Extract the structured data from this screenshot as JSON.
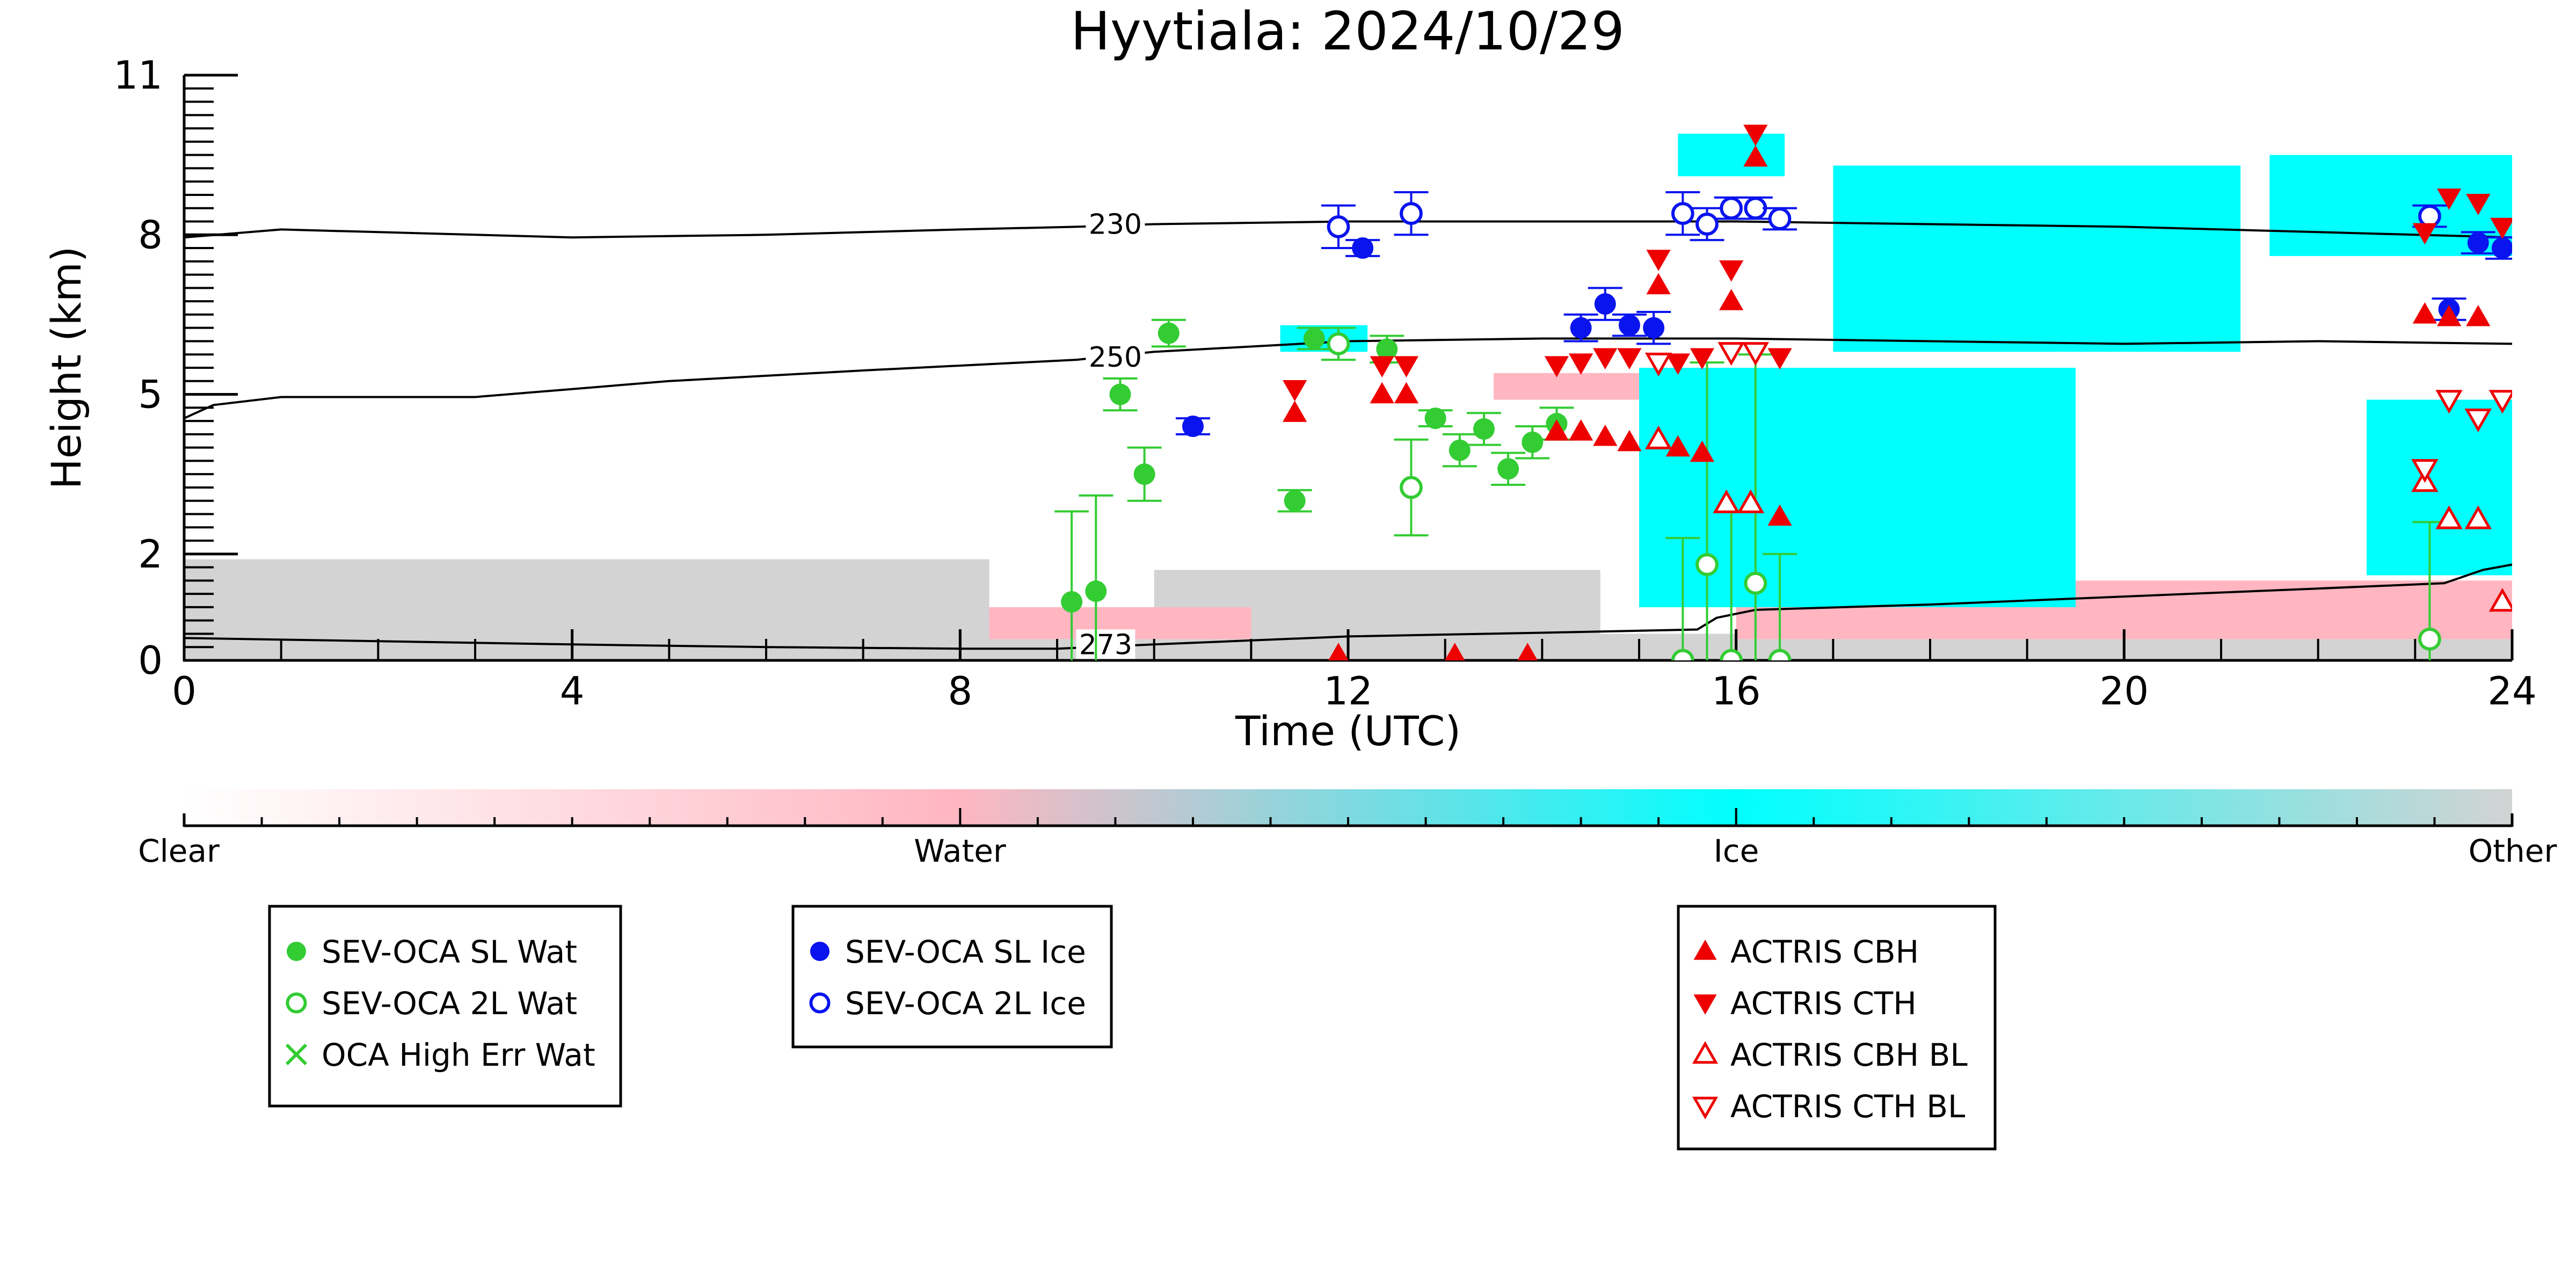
{
  "chart_data": {
    "type": "scatter",
    "title": "Hyytiala: 2024/10/29",
    "xlabel": "Time (UTC)",
    "ylabel": "Height (km)",
    "xlim": [
      0,
      24
    ],
    "ylim": [
      0,
      11
    ],
    "x_ticks": [
      0,
      4,
      8,
      12,
      16,
      20,
      24
    ],
    "x_tick_labels": [
      "0",
      "4",
      "8",
      "12",
      "16",
      "20",
      "24"
    ],
    "y_ticks": [
      0,
      2,
      5,
      8,
      11
    ],
    "y_tick_labels": [
      "0",
      "2",
      "5",
      "8",
      "11"
    ],
    "colorbar": {
      "labels": [
        "Clear",
        "Water",
        "Ice",
        "Other"
      ],
      "colors": [
        "#ffffff",
        "#ffb6c1",
        "#00ffff",
        "#d3d3d3"
      ]
    },
    "background_regions": [
      {
        "category": "Other",
        "color": "#d3d3d3",
        "x0": 0.0,
        "x1": 8.3,
        "y0": 0.0,
        "y1": 1.9
      },
      {
        "category": "Other",
        "color": "#d3d3d3",
        "x0": 8.3,
        "x1": 24.0,
        "y0": 0.0,
        "y1": 0.5
      },
      {
        "category": "Other",
        "color": "#d3d3d3",
        "x0": 10.0,
        "x1": 14.6,
        "y0": 0.4,
        "y1": 1.7
      },
      {
        "category": "Water",
        "color": "#ffb6c1",
        "x0": 8.3,
        "x1": 11.0,
        "y0": 0.4,
        "y1": 1.0
      },
      {
        "category": "Water",
        "color": "#ffb6c1",
        "x0": 16.0,
        "x1": 24.0,
        "y0": 0.4,
        "y1": 1.5
      },
      {
        "category": "Water",
        "color": "#ffb6c1",
        "x0": 13.5,
        "x1": 15.8,
        "y0": 4.9,
        "y1": 5.4
      },
      {
        "category": "Ice",
        "color": "#00ffff",
        "x0": 15.0,
        "x1": 19.5,
        "y0": 1.0,
        "y1": 5.5
      },
      {
        "category": "Ice",
        "color": "#00ffff",
        "x0": 17.0,
        "x1": 21.2,
        "y0": 5.8,
        "y1": 9.3
      },
      {
        "category": "Ice",
        "color": "#00ffff",
        "x0": 21.5,
        "x1": 24.0,
        "y0": 7.6,
        "y1": 9.5
      },
      {
        "category": "Ice",
        "color": "#00ffff",
        "x0": 22.5,
        "x1": 24.0,
        "y0": 1.6,
        "y1": 4.9
      },
      {
        "category": "Ice",
        "color": "#00ffff",
        "x0": 15.4,
        "x1": 16.5,
        "y0": 9.1,
        "y1": 9.9
      },
      {
        "category": "Ice",
        "color": "#00ffff",
        "x0": 11.3,
        "x1": 12.2,
        "y0": 5.8,
        "y1": 6.3
      }
    ],
    "contours": [
      {
        "label": "230",
        "label_x": 9.6,
        "label_y": 8.2,
        "x": [
          0,
          1,
          2,
          4,
          6,
          8,
          9.2,
          10,
          12,
          14,
          16,
          18,
          20,
          22,
          24
        ],
        "y": [
          7.95,
          8.1,
          8.05,
          7.95,
          8.0,
          8.1,
          8.15,
          8.2,
          8.25,
          8.25,
          8.25,
          8.2,
          8.15,
          8.05,
          7.95
        ]
      },
      {
        "label": "250",
        "label_x": 9.6,
        "label_y": 5.7,
        "x": [
          0,
          0.3,
          1,
          3,
          5,
          7,
          9.2,
          10,
          12,
          14,
          16,
          18,
          20,
          22,
          24
        ],
        "y": [
          4.55,
          4.8,
          4.95,
          4.95,
          5.25,
          5.45,
          5.65,
          5.8,
          6.0,
          6.05,
          6.05,
          6.0,
          5.95,
          6.0,
          5.95
        ]
      },
      {
        "label": "273",
        "label_x": 9.5,
        "label_y": 0.3,
        "x": [
          0,
          2,
          4,
          6,
          8,
          9.0,
          10,
          12,
          14,
          15.6,
          15.8,
          16.2,
          18,
          20,
          22,
          23.3,
          23.7,
          24
        ],
        "y": [
          0.42,
          0.36,
          0.3,
          0.25,
          0.22,
          0.22,
          0.3,
          0.45,
          0.52,
          0.58,
          0.8,
          0.95,
          1.05,
          1.2,
          1.35,
          1.45,
          1.7,
          1.8
        ]
      }
    ],
    "series": [
      {
        "name": "SEV-OCA SL Wat",
        "marker": "circle-filled",
        "color": "#33cc33",
        "points": [
          {
            "x": 9.15,
            "y": 1.1,
            "err": 1.7
          },
          {
            "x": 9.4,
            "y": 1.3,
            "err": 1.8
          },
          {
            "x": 9.65,
            "y": 5.0,
            "err": 0.3
          },
          {
            "x": 9.9,
            "y": 3.5,
            "err": 0.5
          },
          {
            "x": 10.15,
            "y": 6.15,
            "err": 0.25
          },
          {
            "x": 11.45,
            "y": 3.0,
            "err": 0.2
          },
          {
            "x": 11.65,
            "y": 6.05,
            "err": 0.2
          },
          {
            "x": 12.4,
            "y": 5.85,
            "err": 0.25
          },
          {
            "x": 12.9,
            "y": 4.55,
            "err": 0.15
          },
          {
            "x": 13.15,
            "y": 3.95,
            "err": 0.3
          },
          {
            "x": 13.4,
            "y": 4.35,
            "err": 0.3
          },
          {
            "x": 13.65,
            "y": 3.6,
            "err": 0.3
          },
          {
            "x": 13.9,
            "y": 4.1,
            "err": 0.3
          },
          {
            "x": 14.15,
            "y": 4.45,
            "err": 0.3
          }
        ]
      },
      {
        "name": "SEV-OCA 2L Wat",
        "marker": "circle-open",
        "color": "#33cc33",
        "points": [
          {
            "x": 11.9,
            "y": 5.95,
            "err": 0.3
          },
          {
            "x": 12.65,
            "y": 3.25,
            "err": 0.9
          },
          {
            "x": 15.45,
            "y": 0.0,
            "err": 2.3
          },
          {
            "x": 15.7,
            "y": 1.8,
            "err": 3.8
          },
          {
            "x": 15.95,
            "y": 0.0,
            "err": 2.8
          },
          {
            "x": 16.2,
            "y": 1.45,
            "err": 4.3
          },
          {
            "x": 16.45,
            "y": 0.0,
            "err": 2.0
          },
          {
            "x": 23.15,
            "y": 0.4,
            "err": 2.2
          }
        ]
      },
      {
        "name": "OCA High Err Wat",
        "marker": "x",
        "color": "#33cc33",
        "points": []
      },
      {
        "name": "SEV-OCA SL Ice",
        "marker": "circle-filled",
        "color": "#0a14ee",
        "points": [
          {
            "x": 10.4,
            "y": 4.4,
            "err": 0.15
          },
          {
            "x": 12.15,
            "y": 7.75,
            "err": 0.15
          },
          {
            "x": 14.4,
            "y": 6.25,
            "err": 0.25
          },
          {
            "x": 14.65,
            "y": 6.7,
            "err": 0.3
          },
          {
            "x": 14.9,
            "y": 6.3,
            "err": 0.2
          },
          {
            "x": 15.15,
            "y": 6.25,
            "err": 0.3
          },
          {
            "x": 23.35,
            "y": 6.6,
            "err": 0.2
          },
          {
            "x": 23.65,
            "y": 7.85,
            "err": 0.2
          },
          {
            "x": 23.9,
            "y": 7.75,
            "err": 0.2
          }
        ]
      },
      {
        "name": "SEV-OCA 2L Ice",
        "marker": "circle-open",
        "color": "#0a14ee",
        "points": [
          {
            "x": 11.9,
            "y": 8.15,
            "err": 0.4
          },
          {
            "x": 12.65,
            "y": 8.4,
            "err": 0.4
          },
          {
            "x": 15.45,
            "y": 8.4,
            "err": 0.4
          },
          {
            "x": 15.7,
            "y": 8.2,
            "err": 0.3
          },
          {
            "x": 15.95,
            "y": 8.5,
            "err": 0.2
          },
          {
            "x": 16.2,
            "y": 8.5,
            "err": 0.2
          },
          {
            "x": 16.45,
            "y": 8.3,
            "err": 0.2
          },
          {
            "x": 23.15,
            "y": 8.35,
            "err": 0.2
          }
        ]
      },
      {
        "name": "ACTRIS CBH",
        "marker": "triangle-up-filled",
        "color": "#ee0000",
        "points": [
          {
            "x": 11.45,
            "y": 4.65
          },
          {
            "x": 12.35,
            "y": 5.0
          },
          {
            "x": 12.6,
            "y": 5.0
          },
          {
            "x": 14.15,
            "y": 4.3
          },
          {
            "x": 14.4,
            "y": 4.3
          },
          {
            "x": 14.65,
            "y": 4.2
          },
          {
            "x": 14.9,
            "y": 4.1
          },
          {
            "x": 15.4,
            "y": 4.0
          },
          {
            "x": 15.65,
            "y": 3.9
          },
          {
            "x": 15.2,
            "y": 7.05
          },
          {
            "x": 15.95,
            "y": 6.75
          },
          {
            "x": 16.2,
            "y": 9.45
          },
          {
            "x": 16.45,
            "y": 2.7
          },
          {
            "x": 11.9,
            "y": 0.1
          },
          {
            "x": 13.1,
            "y": 0.1
          },
          {
            "x": 13.85,
            "y": 0.1
          },
          {
            "x": 23.1,
            "y": 6.5
          },
          {
            "x": 23.35,
            "y": 6.45
          },
          {
            "x": 23.65,
            "y": 6.45
          }
        ]
      },
      {
        "name": "ACTRIS CTH",
        "marker": "triangle-down-filled",
        "color": "#ee0000",
        "points": [
          {
            "x": 11.45,
            "y": 5.1
          },
          {
            "x": 12.35,
            "y": 5.55
          },
          {
            "x": 12.6,
            "y": 5.55
          },
          {
            "x": 14.15,
            "y": 5.55
          },
          {
            "x": 14.4,
            "y": 5.6
          },
          {
            "x": 14.65,
            "y": 5.7
          },
          {
            "x": 14.9,
            "y": 5.7
          },
          {
            "x": 15.4,
            "y": 5.6
          },
          {
            "x": 15.65,
            "y": 5.7
          },
          {
            "x": 15.2,
            "y": 7.55
          },
          {
            "x": 15.95,
            "y": 7.35
          },
          {
            "x": 16.2,
            "y": 9.9
          },
          {
            "x": 16.45,
            "y": 5.7
          },
          {
            "x": 23.1,
            "y": 8.05
          },
          {
            "x": 23.35,
            "y": 8.7
          },
          {
            "x": 23.65,
            "y": 8.6
          },
          {
            "x": 23.9,
            "y": 8.15
          }
        ]
      },
      {
        "name": "ACTRIS CBH BL",
        "marker": "triangle-up-open",
        "color": "#ee0000",
        "points": [
          {
            "x": 15.2,
            "y": 4.15
          },
          {
            "x": 15.9,
            "y": 2.95
          },
          {
            "x": 16.15,
            "y": 2.95
          },
          {
            "x": 23.1,
            "y": 3.35
          },
          {
            "x": 23.35,
            "y": 2.65
          },
          {
            "x": 23.65,
            "y": 2.65
          },
          {
            "x": 23.9,
            "y": 1.1
          }
        ]
      },
      {
        "name": "ACTRIS CTH BL",
        "marker": "triangle-down-open",
        "color": "#ee0000",
        "points": [
          {
            "x": 15.2,
            "y": 5.6
          },
          {
            "x": 15.95,
            "y": 5.8
          },
          {
            "x": 16.2,
            "y": 5.8
          },
          {
            "x": 23.1,
            "y": 3.6
          },
          {
            "x": 23.35,
            "y": 4.9
          },
          {
            "x": 23.65,
            "y": 4.55
          },
          {
            "x": 23.9,
            "y": 4.9
          }
        ]
      }
    ],
    "legends": [
      {
        "entries": [
          "SEV-OCA SL Wat",
          "SEV-OCA 2L Wat",
          "OCA High Err Wat"
        ]
      },
      {
        "entries": [
          "SEV-OCA SL Ice",
          "SEV-OCA 2L Ice"
        ]
      },
      {
        "entries": [
          "ACTRIS CBH",
          "ACTRIS CTH",
          "ACTRIS CBH BL",
          "ACTRIS CTH BL"
        ]
      }
    ]
  }
}
